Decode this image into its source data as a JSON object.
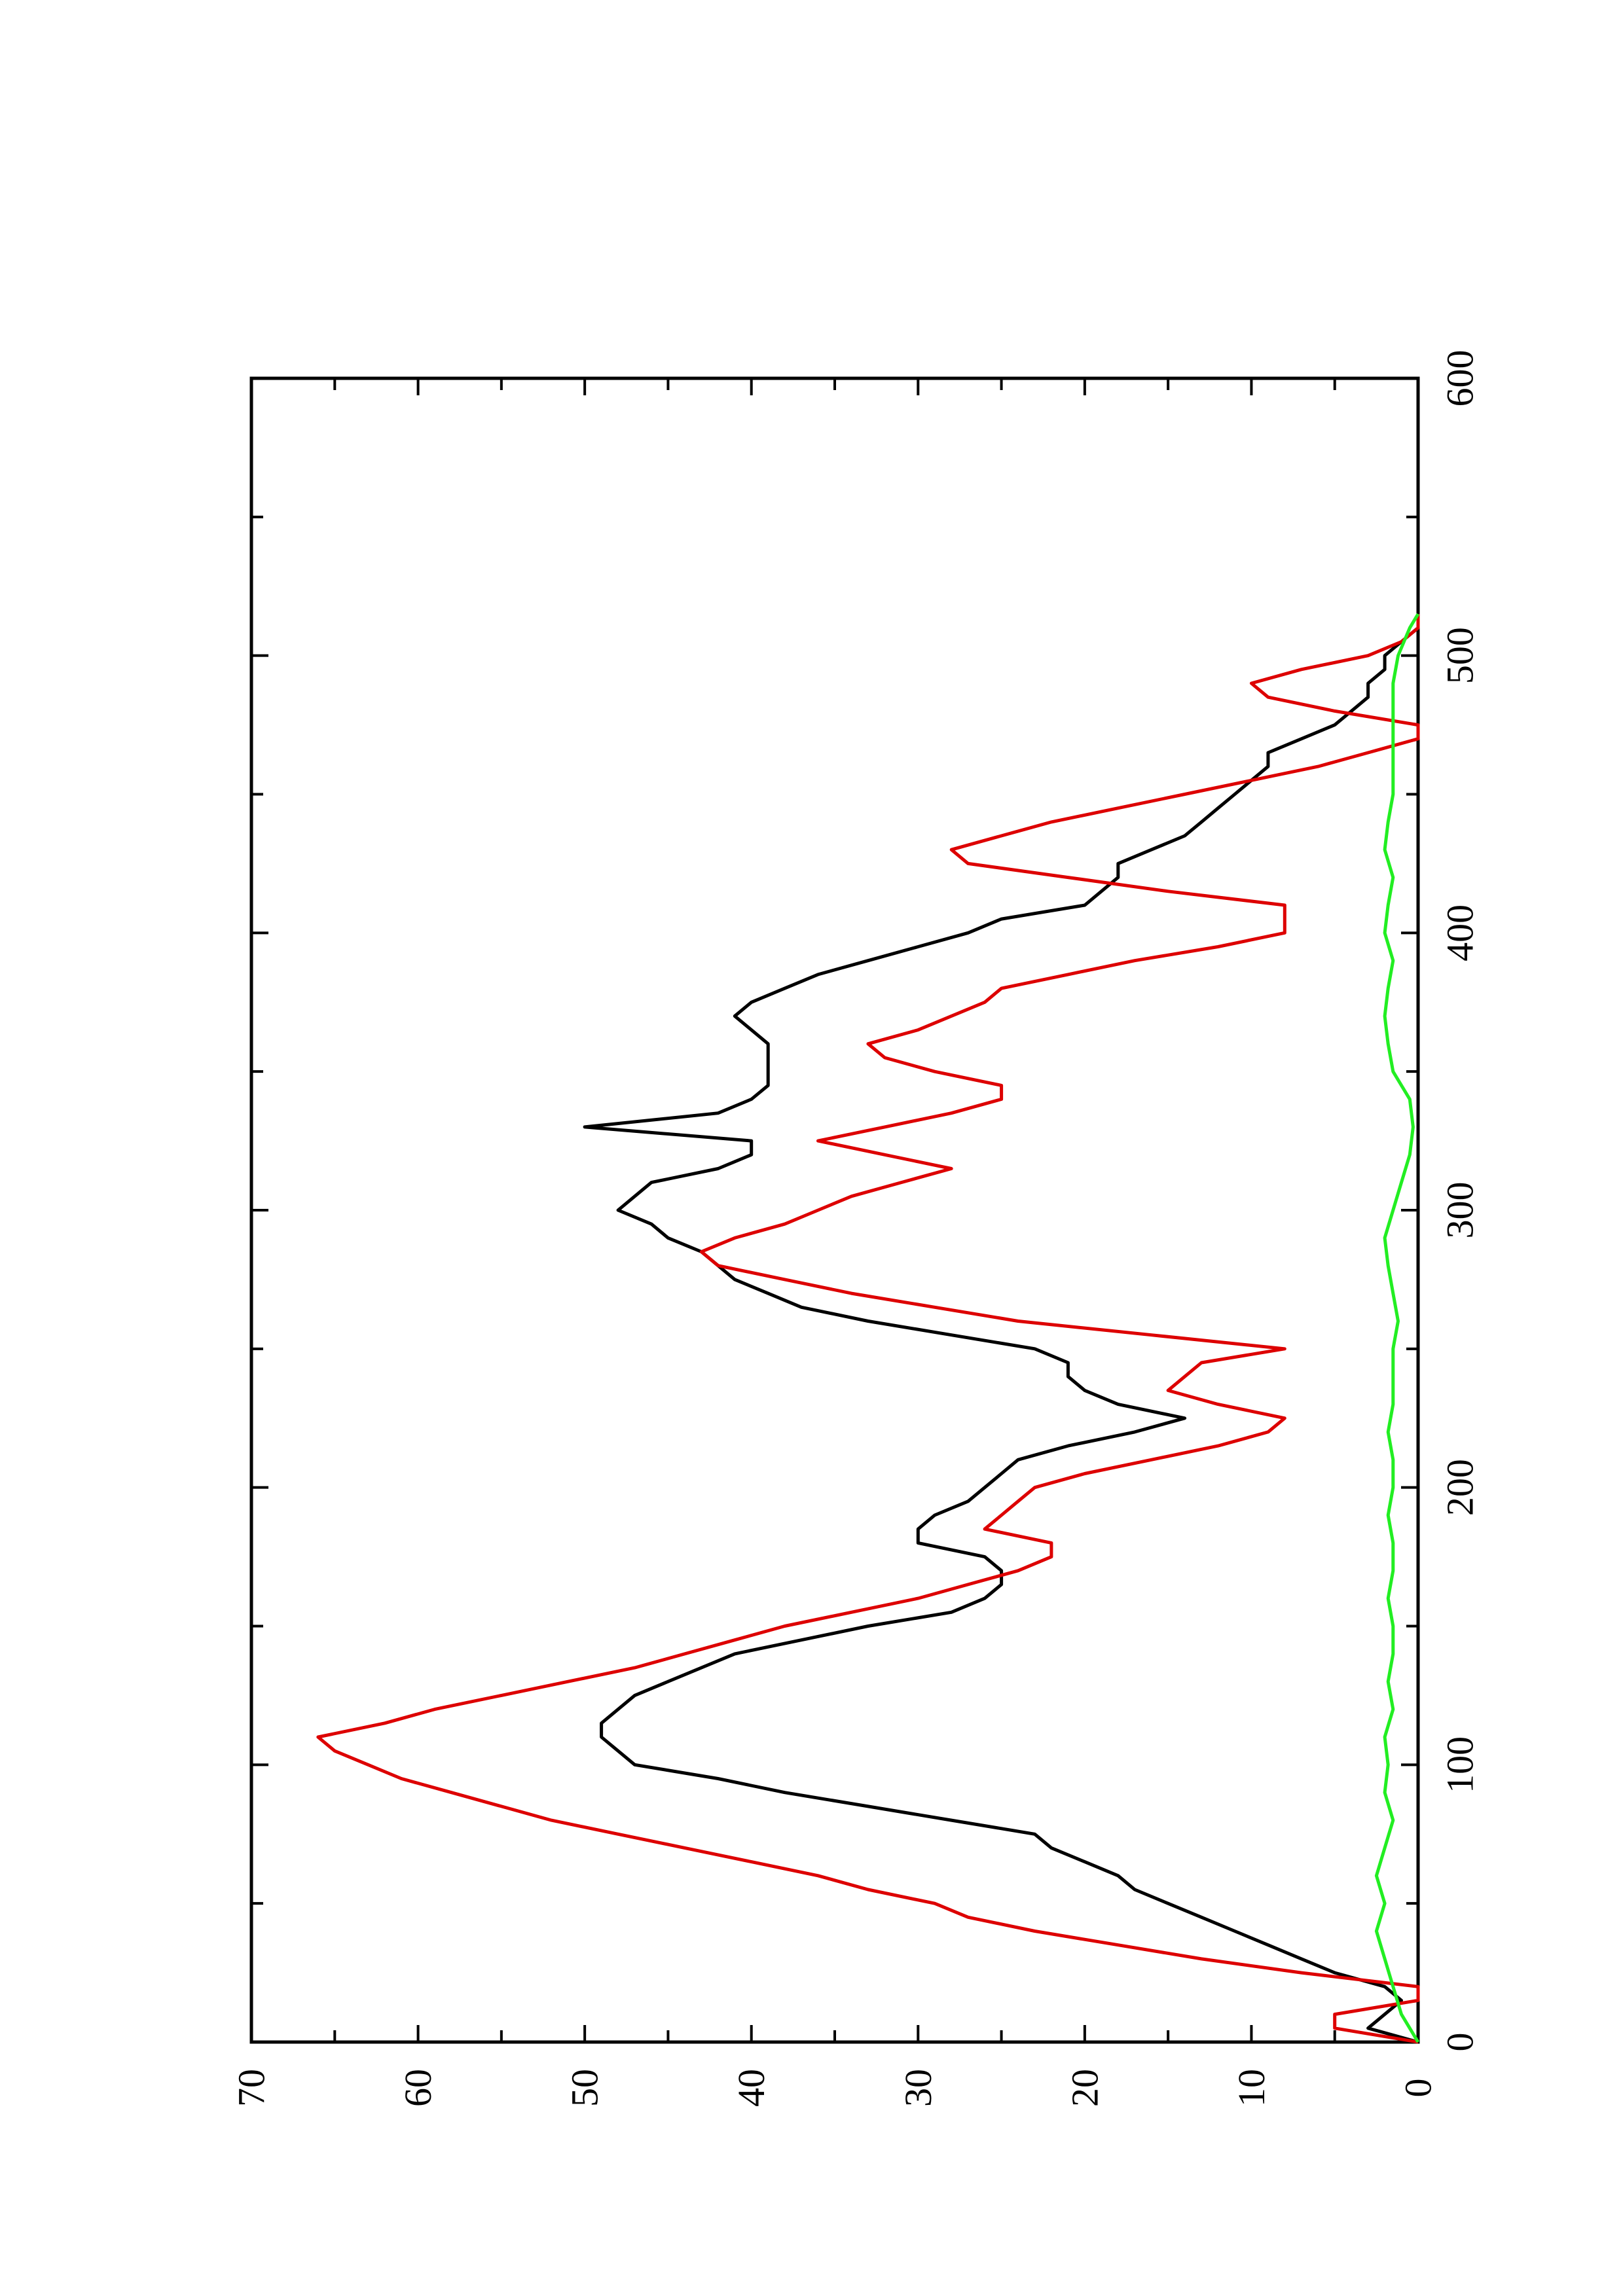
{
  "chart_data": {
    "type": "line",
    "orientation": "rotated 90° counter-clockwise (x axis runs vertically on the page)",
    "xlim": [
      0,
      600
    ],
    "ylim": [
      0,
      70
    ],
    "xticks": [
      "0",
      "100",
      "200",
      "300",
      "400",
      "500",
      "600"
    ],
    "yticks": [
      "0",
      "10",
      "20",
      "30",
      "40",
      "50",
      "60",
      "70"
    ],
    "grid": false,
    "legend": "none",
    "series": [
      {
        "color": "#000000",
        "x": [
          0,
          5,
          10,
          15,
          20,
          25,
          30,
          35,
          40,
          45,
          50,
          55,
          60,
          65,
          70,
          75,
          80,
          85,
          90,
          95,
          100,
          105,
          110,
          115,
          120,
          125,
          130,
          135,
          140,
          145,
          150,
          155,
          160,
          165,
          170,
          175,
          180,
          185,
          190,
          195,
          200,
          205,
          210,
          215,
          220,
          225,
          230,
          235,
          240,
          245,
          250,
          255,
          260,
          265,
          270,
          275,
          280,
          285,
          290,
          295,
          300,
          305,
          310,
          315,
          320,
          325,
          330,
          335,
          340,
          345,
          350,
          355,
          360,
          365,
          370,
          375,
          380,
          385,
          390,
          395,
          400,
          405,
          410,
          415,
          420,
          425,
          430,
          435,
          440,
          445,
          450,
          455,
          460,
          465,
          470,
          475,
          480,
          485,
          490,
          495,
          500,
          505,
          510,
          515
        ],
        "y": [
          0,
          3,
          2,
          1,
          2,
          5,
          7,
          9,
          11,
          13,
          15,
          17,
          18,
          20,
          22,
          23,
          28,
          33,
          38,
          42,
          47,
          48,
          49,
          49,
          48,
          47,
          45,
          43,
          41,
          37,
          33,
          28,
          26,
          25,
          25,
          26,
          30,
          30,
          29,
          27,
          26,
          25,
          24,
          21,
          17,
          14,
          18,
          20,
          21,
          21,
          23,
          28,
          33,
          37,
          39,
          41,
          42,
          43,
          45,
          46,
          48,
          47,
          46,
          42,
          40,
          40,
          50,
          42,
          40,
          39,
          39,
          39,
          39,
          40,
          41,
          40,
          38,
          36,
          33,
          30,
          27,
          25,
          20,
          19,
          18,
          18,
          16,
          14,
          13,
          12,
          11,
          10,
          9,
          9,
          7,
          5,
          4,
          3,
          3,
          2,
          2,
          1,
          0,
          0
        ]
      },
      {
        "color": "#dd0000",
        "x": [
          0,
          5,
          10,
          15,
          20,
          25,
          30,
          35,
          40,
          45,
          50,
          55,
          60,
          65,
          70,
          75,
          80,
          85,
          90,
          95,
          100,
          105,
          110,
          115,
          120,
          125,
          130,
          135,
          140,
          145,
          150,
          155,
          160,
          165,
          170,
          175,
          180,
          185,
          190,
          195,
          200,
          205,
          210,
          215,
          220,
          225,
          230,
          235,
          240,
          245,
          250,
          255,
          260,
          265,
          270,
          275,
          280,
          285,
          290,
          295,
          300,
          305,
          310,
          315,
          320,
          325,
          330,
          335,
          340,
          345,
          350,
          355,
          360,
          365,
          370,
          375,
          380,
          385,
          390,
          395,
          400,
          405,
          410,
          415,
          420,
          425,
          430,
          435,
          440,
          445,
          450,
          455,
          460,
          465,
          470,
          475,
          480,
          485,
          490,
          495,
          500,
          505,
          510,
          515
        ],
        "y": [
          0,
          5,
          5,
          0,
          0,
          7,
          13,
          18,
          23,
          27,
          29,
          33,
          36,
          40,
          44,
          48,
          52,
          55,
          58,
          61,
          63,
          65,
          66,
          62,
          59,
          55,
          51,
          47,
          44,
          41,
          38,
          34,
          30,
          27,
          24,
          22,
          22,
          26,
          25,
          24,
          23,
          20,
          16,
          12,
          9,
          8,
          12,
          15,
          14,
          13,
          8,
          16,
          24,
          29,
          34,
          38,
          42,
          43,
          41,
          38,
          36,
          34,
          31,
          28,
          32,
          36,
          32,
          28,
          25,
          25,
          29,
          32,
          33,
          30,
          28,
          26,
          25,
          21,
          17,
          12,
          8,
          8,
          8,
          15,
          21,
          27,
          28,
          25,
          22,
          18,
          14,
          10,
          6,
          3,
          0,
          0,
          5,
          9,
          10,
          7,
          3,
          1,
          0,
          0
        ]
      },
      {
        "color": "#22ee22",
        "x": [
          0,
          10,
          20,
          30,
          40,
          50,
          60,
          70,
          80,
          90,
          100,
          110,
          120,
          130,
          140,
          150,
          160,
          170,
          180,
          190,
          200,
          210,
          220,
          230,
          240,
          250,
          260,
          270,
          280,
          290,
          300,
          310,
          320,
          330,
          340,
          350,
          360,
          370,
          380,
          390,
          400,
          410,
          420,
          430,
          440,
          450,
          460,
          470,
          480,
          490,
          500,
          510,
          515
        ],
        "y": [
          0,
          1,
          1.5,
          2,
          2.5,
          2,
          2.5,
          2,
          1.5,
          2,
          1.8,
          2,
          1.5,
          1.8,
          1.5,
          1.5,
          1.8,
          1.5,
          1.5,
          1.8,
          1.5,
          1.5,
          1.8,
          1.5,
          1.5,
          1.5,
          1.2,
          1.5,
          1.8,
          2,
          1.5,
          1,
          0.5,
          0.3,
          0.5,
          1.5,
          1.8,
          2,
          1.8,
          1.5,
          2,
          1.8,
          1.5,
          2,
          1.8,
          1.5,
          1.5,
          1.5,
          1.5,
          1.5,
          1.2,
          0.5,
          0
        ]
      }
    ]
  }
}
